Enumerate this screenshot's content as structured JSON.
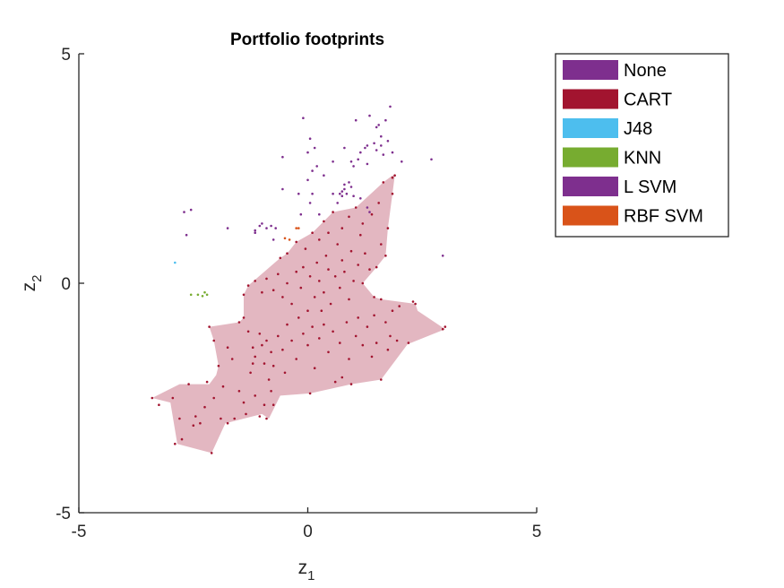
{
  "chart_data": {
    "type": "scatter",
    "title": "Portfolio footprints",
    "xlabel": "z",
    "xlabel_sub": "1",
    "ylabel": "z",
    "ylabel_sub": "2",
    "xlim": [
      -5,
      5
    ],
    "ylim": [
      -5,
      5
    ],
    "xticks": [
      -5,
      0,
      5
    ],
    "yticks": [
      -5,
      0,
      5
    ],
    "xtick_labels": [
      "-5",
      "0",
      "5"
    ],
    "ytick_labels": [
      "-5",
      "0",
      "5"
    ],
    "grid": false,
    "legend_position": "outside-top-right",
    "legend": [
      {
        "label": "None",
        "color": "#7E2F8E"
      },
      {
        "label": "CART",
        "color": "#A2142F"
      },
      {
        "label": "J48",
        "color": "#4DBEEE"
      },
      {
        "label": "KNN",
        "color": "#77AC30"
      },
      {
        "label": "L SVM",
        "color": "#7E2F8E"
      },
      {
        "label": "RBF SVM",
        "color": "#D95319"
      }
    ],
    "footprint": {
      "series": "CART",
      "fill_color": "#E3B7C1",
      "vertices": [
        [
          -3.4,
          -2.5
        ],
        [
          -3.0,
          -2.6
        ],
        [
          -2.85,
          -3.5
        ],
        [
          -2.1,
          -3.7
        ],
        [
          -1.8,
          -3.05
        ],
        [
          -1.0,
          -2.85
        ],
        [
          -0.85,
          -2.95
        ],
        [
          -0.6,
          -2.45
        ],
        [
          0.05,
          -2.4
        ],
        [
          0.95,
          -2.2
        ],
        [
          1.6,
          -2.1
        ],
        [
          2.2,
          -1.3
        ],
        [
          2.25,
          -1.3
        ],
        [
          3.0,
          -1.0
        ],
        [
          2.4,
          -0.6
        ],
        [
          2.35,
          -0.45
        ],
        [
          1.6,
          -0.35
        ],
        [
          1.45,
          -0.3
        ],
        [
          1.2,
          0.0
        ],
        [
          1.5,
          0.35
        ],
        [
          1.7,
          0.6
        ],
        [
          1.75,
          1.2
        ],
        [
          1.85,
          1.95
        ],
        [
          1.9,
          2.35
        ],
        [
          1.85,
          2.35
        ],
        [
          1.65,
          2.2
        ],
        [
          1.05,
          1.65
        ],
        [
          0.55,
          1.55
        ],
        [
          0.35,
          1.35
        ],
        [
          0.1,
          1.1
        ],
        [
          -0.25,
          0.9
        ],
        [
          -0.45,
          0.65
        ],
        [
          -0.6,
          0.55
        ],
        [
          -1.3,
          -0.05
        ],
        [
          -1.4,
          -0.25
        ],
        [
          -1.4,
          -0.75
        ],
        [
          -1.5,
          -0.85
        ],
        [
          -2.15,
          -0.95
        ],
        [
          -2.05,
          -1.25
        ],
        [
          -1.95,
          -1.8
        ],
        [
          -2.0,
          -2.0
        ],
        [
          -2.15,
          -2.2
        ],
        [
          -2.8,
          -2.2
        ]
      ]
    },
    "points": {
      "None": [
        [
          -2.7,
          1.55
        ],
        [
          -2.55,
          1.6
        ],
        [
          -2.65,
          1.05
        ],
        [
          -1.75,
          1.2
        ],
        [
          -1.15,
          1.1
        ],
        [
          -1.15,
          1.15
        ],
        [
          -1.05,
          1.25
        ],
        [
          -1.0,
          1.3
        ],
        [
          -0.9,
          1.2
        ],
        [
          -0.8,
          1.25
        ],
        [
          -0.75,
          0.95
        ],
        [
          -0.7,
          1.2
        ],
        [
          -0.15,
          1.5
        ],
        [
          0.05,
          1.75
        ],
        [
          0.1,
          1.95
        ],
        [
          0.25,
          1.5
        ],
        [
          0.65,
          1.75
        ],
        [
          0.75,
          1.9
        ],
        [
          0.85,
          1.95
        ],
        [
          0.95,
          2.1
        ],
        [
          1.0,
          1.9
        ],
        [
          1.15,
          1.85
        ],
        [
          1.3,
          1.65
        ],
        [
          1.35,
          1.55
        ],
        [
          -0.55,
          2.05
        ],
        [
          -0.2,
          1.95
        ],
        [
          0.0,
          2.25
        ],
        [
          0.1,
          2.45
        ],
        [
          0.2,
          2.55
        ],
        [
          0.35,
          2.35
        ],
        [
          0.55,
          1.95
        ],
        [
          0.7,
          1.95
        ],
        [
          0.75,
          2.0
        ],
        [
          0.8,
          2.05
        ],
        [
          0.8,
          2.15
        ],
        [
          0.9,
          2.2
        ],
        [
          1.0,
          2.55
        ],
        [
          1.1,
          2.7
        ],
        [
          1.25,
          2.95
        ],
        [
          1.3,
          3.0
        ],
        [
          1.45,
          3.05
        ],
        [
          1.6,
          3.2
        ],
        [
          1.75,
          3.1
        ],
        [
          -0.55,
          2.75
        ],
        [
          0.0,
          2.85
        ],
        [
          0.15,
          2.95
        ],
        [
          0.55,
          2.65
        ],
        [
          0.8,
          2.95
        ],
        [
          0.95,
          2.65
        ],
        [
          1.15,
          2.85
        ],
        [
          1.3,
          2.6
        ],
        [
          1.5,
          2.9
        ],
        [
          1.6,
          3.0
        ],
        [
          1.65,
          2.8
        ],
        [
          1.85,
          2.85
        ],
        [
          2.05,
          2.65
        ],
        [
          2.7,
          2.7
        ],
        [
          2.95,
          0.6
        ],
        [
          1.05,
          3.55
        ],
        [
          1.35,
          3.65
        ],
        [
          1.5,
          3.4
        ],
        [
          1.55,
          3.45
        ],
        [
          1.7,
          3.55
        ],
        [
          1.8,
          3.85
        ],
        [
          0.05,
          3.15
        ],
        [
          -0.1,
          3.6
        ]
      ],
      "CART": [
        [
          -3.4,
          -2.5
        ],
        [
          -3.25,
          -2.65
        ],
        [
          -2.95,
          -2.5
        ],
        [
          -2.9,
          -3.5
        ],
        [
          -2.8,
          -2.95
        ],
        [
          -2.75,
          -3.4
        ],
        [
          -2.6,
          -2.2
        ],
        [
          -2.5,
          -3.1
        ],
        [
          -2.45,
          -2.9
        ],
        [
          -2.35,
          -3.05
        ],
        [
          -2.25,
          -2.7
        ],
        [
          -2.2,
          -2.15
        ],
        [
          -2.1,
          -3.7
        ],
        [
          -2.05,
          -2.5
        ],
        [
          -1.9,
          -2.95
        ],
        [
          -1.85,
          -2.25
        ],
        [
          -1.75,
          -3.05
        ],
        [
          -1.6,
          -2.95
        ],
        [
          -1.5,
          -2.35
        ],
        [
          -1.4,
          -2.6
        ],
        [
          -1.35,
          -2.85
        ],
        [
          -1.25,
          -1.95
        ],
        [
          -1.2,
          -1.75
        ],
        [
          -1.15,
          -2.45
        ],
        [
          -1.05,
          -2.9
        ],
        [
          -0.95,
          -2.65
        ],
        [
          -0.9,
          -2.95
        ],
        [
          -0.85,
          -2.1
        ],
        [
          -0.8,
          -2.35
        ],
        [
          -0.75,
          -2.65
        ],
        [
          -2.15,
          -0.95
        ],
        [
          -2.05,
          -1.25
        ],
        [
          -1.95,
          -1.8
        ],
        [
          -1.75,
          -1.4
        ],
        [
          -1.65,
          -1.65
        ],
        [
          -1.5,
          -0.85
        ],
        [
          -1.4,
          -0.75
        ],
        [
          -1.3,
          -1.05
        ],
        [
          -1.2,
          -1.4
        ],
        [
          -1.15,
          -1.6
        ],
        [
          -1.05,
          -1.1
        ],
        [
          -1.0,
          -1.35
        ],
        [
          -0.95,
          -1.75
        ],
        [
          -0.9,
          -1.25
        ],
        [
          -0.8,
          -1.5
        ],
        [
          -0.75,
          -1.8
        ],
        [
          -0.65,
          -1.15
        ],
        [
          -0.55,
          -1.45
        ],
        [
          -0.5,
          -1.95
        ],
        [
          -0.45,
          -0.9
        ],
        [
          -0.35,
          -1.25
        ],
        [
          -0.25,
          -1.65
        ],
        [
          -0.2,
          -0.75
        ],
        [
          -0.1,
          -1.1
        ],
        [
          0.0,
          -1.35
        ],
        [
          0.05,
          -2.4
        ],
        [
          0.1,
          -0.95
        ],
        [
          0.15,
          -1.85
        ],
        [
          0.25,
          -1.2
        ],
        [
          0.3,
          -0.6
        ],
        [
          0.35,
          -0.9
        ],
        [
          0.45,
          -1.5
        ],
        [
          0.55,
          -1.05
        ],
        [
          0.6,
          -2.15
        ],
        [
          0.7,
          -1.3
        ],
        [
          0.75,
          -2.05
        ],
        [
          0.85,
          -0.85
        ],
        [
          0.9,
          -1.65
        ],
        [
          0.95,
          -2.2
        ],
        [
          1.05,
          -1.15
        ],
        [
          1.1,
          -0.75
        ],
        [
          1.2,
          -1.35
        ],
        [
          1.3,
          -0.95
        ],
        [
          1.4,
          -1.6
        ],
        [
          1.45,
          -0.7
        ],
        [
          1.5,
          -1.3
        ],
        [
          1.6,
          -2.1
        ],
        [
          1.7,
          -0.85
        ],
        [
          1.75,
          -1.45
        ],
        [
          1.8,
          -1.15
        ],
        [
          1.85,
          -0.6
        ],
        [
          1.95,
          -1.25
        ],
        [
          2.0,
          -0.5
        ],
        [
          2.2,
          -1.3
        ],
        [
          2.3,
          -0.4
        ],
        [
          2.35,
          -0.45
        ],
        [
          2.95,
          -1.0
        ],
        [
          3.0,
          -0.95
        ],
        [
          -1.4,
          -0.25
        ],
        [
          -1.3,
          -0.05
        ],
        [
          -1.15,
          0.05
        ],
        [
          -1.0,
          -0.2
        ],
        [
          -0.9,
          0.1
        ],
        [
          -0.75,
          -0.15
        ],
        [
          -0.65,
          0.2
        ],
        [
          -0.55,
          -0.3
        ],
        [
          -0.45,
          0.0
        ],
        [
          -0.35,
          -0.45
        ],
        [
          -0.25,
          0.25
        ],
        [
          -0.15,
          -0.1
        ],
        [
          -0.1,
          0.35
        ],
        [
          0.0,
          -0.6
        ],
        [
          0.05,
          0.15
        ],
        [
          0.15,
          -0.3
        ],
        [
          0.2,
          0.45
        ],
        [
          0.25,
          0.05
        ],
        [
          0.35,
          -0.2
        ],
        [
          0.4,
          0.6
        ],
        [
          0.45,
          0.3
        ],
        [
          0.5,
          -0.45
        ],
        [
          0.6,
          0.15
        ],
        [
          0.65,
          0.85
        ],
        [
          0.7,
          -0.1
        ],
        [
          0.75,
          0.5
        ],
        [
          0.8,
          0.25
        ],
        [
          0.9,
          -0.35
        ],
        [
          0.95,
          0.7
        ],
        [
          1.0,
          0.05
        ],
        [
          1.1,
          0.4
        ],
        [
          1.15,
          1.05
        ],
        [
          1.2,
          0.0
        ],
        [
          1.25,
          0.65
        ],
        [
          1.35,
          0.3
        ],
        [
          1.45,
          -0.3
        ],
        [
          1.5,
          0.35
        ],
        [
          1.6,
          0.85
        ],
        [
          1.6,
          -0.35
        ],
        [
          1.7,
          0.6
        ],
        [
          1.75,
          1.2
        ],
        [
          1.85,
          1.95
        ],
        [
          1.85,
          2.3
        ],
        [
          1.9,
          2.35
        ],
        [
          1.65,
          2.2
        ],
        [
          1.55,
          1.75
        ],
        [
          1.4,
          1.5
        ],
        [
          1.2,
          1.3
        ],
        [
          1.05,
          1.65
        ],
        [
          0.9,
          1.45
        ],
        [
          0.75,
          1.2
        ],
        [
          0.55,
          1.55
        ],
        [
          0.45,
          1.1
        ],
        [
          0.35,
          1.35
        ],
        [
          0.25,
          0.95
        ],
        [
          0.1,
          1.1
        ],
        [
          -0.05,
          0.75
        ],
        [
          -0.25,
          0.9
        ],
        [
          -0.45,
          0.65
        ],
        [
          -0.6,
          0.55
        ]
      ],
      "J48": [
        [
          -2.9,
          0.45
        ]
      ],
      "KNN": [
        [
          -2.55,
          -0.25
        ],
        [
          -2.4,
          -0.25
        ],
        [
          -2.3,
          -0.28
        ],
        [
          -2.25,
          -0.2
        ],
        [
          -2.2,
          -0.25
        ]
      ],
      "L SVM": [],
      "RBF SVM": [
        [
          -0.5,
          0.98
        ],
        [
          -0.4,
          0.95
        ],
        [
          -0.25,
          1.2
        ],
        [
          -0.2,
          1.2
        ]
      ]
    }
  }
}
